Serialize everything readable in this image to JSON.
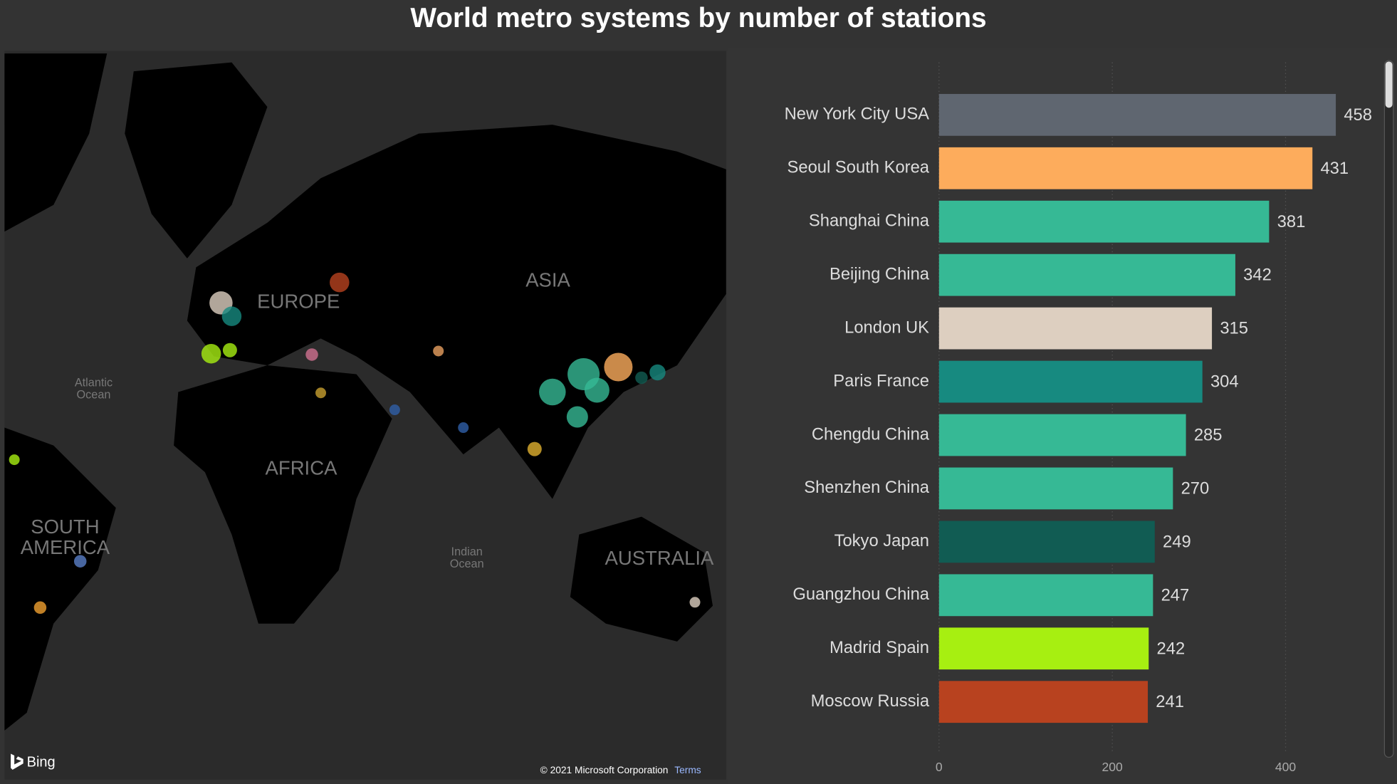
{
  "chart_data": {
    "type": "bar",
    "orientation": "horizontal",
    "title": "World metro systems by number of stations",
    "categories": [
      "New York City USA",
      "Seoul South Korea",
      "Shanghai China",
      "Beijing China",
      "London UK",
      "Paris France",
      "Chengdu China",
      "Shenzhen China",
      "Tokyo Japan",
      "Guangzhou China",
      "Madrid Spain",
      "Moscow Russia"
    ],
    "values": [
      458,
      431,
      381,
      342,
      315,
      304,
      285,
      270,
      249,
      247,
      242,
      241
    ],
    "colors": [
      "#5f6670",
      "#fdac5c",
      "#36b995",
      "#36b995",
      "#ddcfc0",
      "#178a80",
      "#36b995",
      "#36b995",
      "#115c53",
      "#36b995",
      "#a7ef11",
      "#b8421f"
    ],
    "xlim": [
      0,
      500
    ],
    "xticks": [
      0,
      200,
      400
    ],
    "grid": true
  },
  "map": {
    "labels": [
      [
        "ASIA"
      ],
      [
        "EUROPE"
      ],
      [
        "AFRICA"
      ],
      [
        "SOUTH",
        "AMERICA"
      ],
      [
        "AUSTRALIA"
      ],
      [
        "Atlantic",
        "Ocean"
      ],
      [
        "Indian",
        "Ocean"
      ]
    ],
    "logo": "Bing",
    "attribution": "© 2021 Microsoft Corporation",
    "terms": "Terms"
  }
}
